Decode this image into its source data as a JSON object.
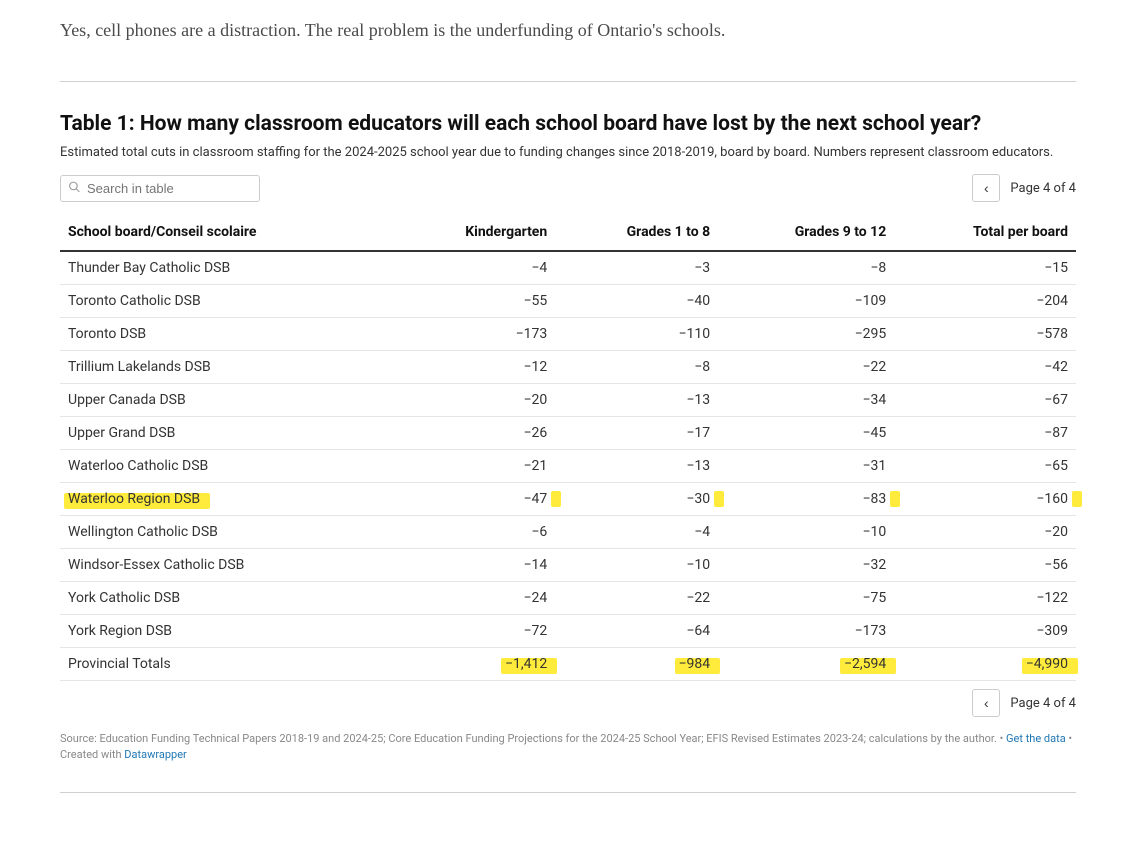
{
  "intro_text": "Yes, cell phones are a distraction. The real problem is the underfunding of Ontario's schools.",
  "table": {
    "title": "Table 1: How many classroom educators will each school board have lost by the next school year?",
    "description": "Estimated total cuts in classroom staffing for the 2024-2025 school year due to funding changes since 2018-2019, board by board. Numbers represent classroom educators.",
    "search_placeholder": "Search in table",
    "page_label": "Page 4 of 4",
    "columns": [
      "School board/Conseil scolaire",
      "Kindergarten",
      "Grades 1 to 8",
      "Grades 9 to 12",
      "Total per board"
    ],
    "rows": [
      {
        "board": "Thunder Bay Catholic DSB",
        "k": "−4",
        "g18": "−3",
        "g912": "−8",
        "total": "−15"
      },
      {
        "board": "Toronto Catholic DSB",
        "k": "−55",
        "g18": "−40",
        "g912": "−109",
        "total": "−204"
      },
      {
        "board": "Toronto DSB",
        "k": "−173",
        "g18": "−110",
        "g912": "−295",
        "total": "−578"
      },
      {
        "board": "Trillium Lakelands DSB",
        "k": "−12",
        "g18": "−8",
        "g912": "−22",
        "total": "−42"
      },
      {
        "board": "Upper Canada DSB",
        "k": "−20",
        "g18": "−13",
        "g912": "−34",
        "total": "−67"
      },
      {
        "board": "Upper Grand DSB",
        "k": "−26",
        "g18": "−17",
        "g912": "−45",
        "total": "−87"
      },
      {
        "board": "Waterloo Catholic DSB",
        "k": "−21",
        "g18": "−13",
        "g912": "−31",
        "total": "−65"
      },
      {
        "board": "Waterloo Region DSB",
        "k": "−47",
        "g18": "−30",
        "g912": "−83",
        "total": "−160",
        "highlight": true
      },
      {
        "board": "Wellington Catholic DSB",
        "k": "−6",
        "g18": "−4",
        "g912": "−10",
        "total": "−20"
      },
      {
        "board": "Windsor-Essex Catholic DSB",
        "k": "−14",
        "g18": "−10",
        "g912": "−32",
        "total": "−56"
      },
      {
        "board": "York Catholic DSB",
        "k": "−24",
        "g18": "−22",
        "g912": "−75",
        "total": "−122"
      },
      {
        "board": "York Region DSB",
        "k": "−72",
        "g18": "−64",
        "g912": "−173",
        "total": "−309"
      },
      {
        "board": "Provincial Totals",
        "k": "−1,412",
        "g18": "−984",
        "g912": "−2,594",
        "total": "−4,990",
        "highlight_totals": true
      }
    ],
    "source_prefix": "Source: Education Funding Technical Papers 2018-19 and 2024-25; Core Education Funding Projections for the 2024-25 School Year; EFIS Revised Estimates 2023-24; calculations by the author. • ",
    "get_data_label": "Get the data",
    "created_prefix": " • Created with ",
    "datawrapper_label": "Datawrapper"
  },
  "colors": {
    "highlight": "#ffeb3b",
    "text": "#333333",
    "border": "#e5e5e5",
    "link": "#1f77b4"
  }
}
